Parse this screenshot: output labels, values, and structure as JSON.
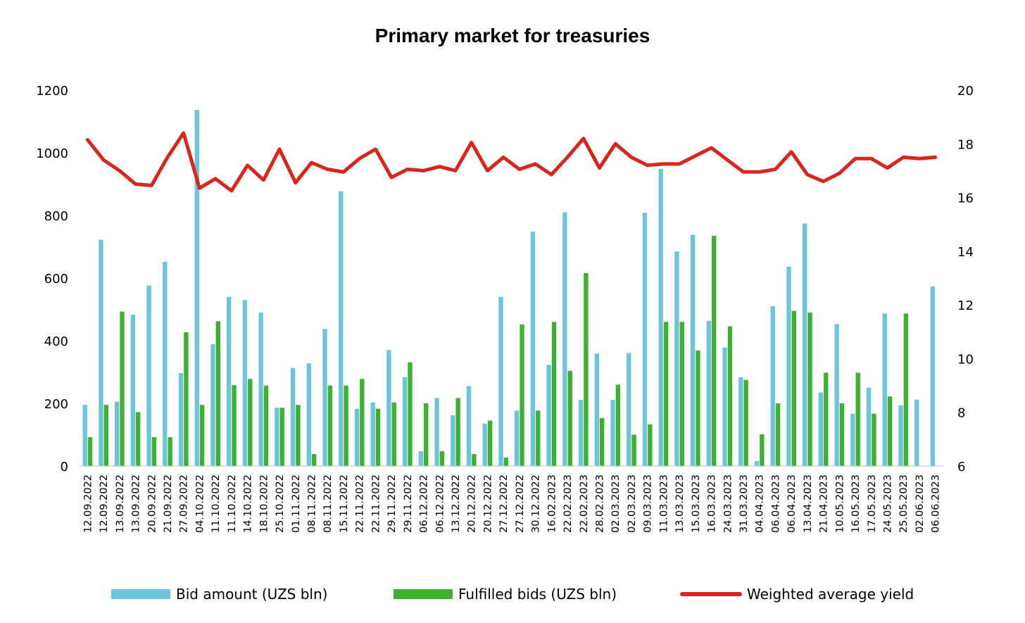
{
  "chart_data": {
    "type": "bar",
    "title": "Primary market for treasuries",
    "categories": [
      "12.09.2022",
      "12.09.2022",
      "13.09.2022",
      "13.09.2022",
      "20.09.2022",
      "21.09.2022",
      "27.09.2022",
      "04.10.2022",
      "11.10.2022",
      "11.10.2022",
      "14.10.2022",
      "18.10.2022",
      "25.10.2022",
      "01.11.2022",
      "08.11.2022",
      "08.11.2022",
      "15.11.2022",
      "22.11.2022",
      "22.11.2022",
      "29.11.2022",
      "29.11.2022",
      "06.12.2022",
      "06.12.2022",
      "13.12.2022",
      "20.12.2022",
      "20.12.2022",
      "27.12.2022",
      "27.12.2022",
      "30.12.2022",
      "16.02.2023",
      "22.02.2023",
      "22.02.2023",
      "28.02.2023",
      "02.03.2023",
      "02.03.2023",
      "09.03.2023",
      "11.03.2023",
      "13.03.2023",
      "15.03.2023",
      "16.03.2023",
      "24.03.2023",
      "31.03.2023",
      "04.04.2023",
      "06.04.2023",
      "06.04.2023",
      "13.04.2023",
      "21.04.2023",
      "10.05.2023",
      "16.05.2023",
      "17.05.2023",
      "24.05.2023",
      "25.05.2023",
      "02.06.2023",
      "06.06.2023"
    ],
    "series": [
      {
        "name": "Bid amount (UZS bln)",
        "type": "bar",
        "axis": "left",
        "color": "#6CC5D9",
        "values": [
          195,
          722,
          205,
          483,
          576,
          652,
          297,
          1137,
          389,
          540,
          530,
          490,
          186,
          313,
          328,
          438,
          877,
          183,
          203,
          370,
          284,
          47,
          217,
          162,
          255,
          135,
          540,
          177,
          748,
          323,
          810,
          211,
          359,
          211,
          361,
          808,
          949,
          685,
          738,
          464,
          378,
          283,
          16,
          510,
          636,
          774,
          235,
          453,
          167,
          250,
          487,
          194,
          212,
          573
        ]
      },
      {
        "name": "Fulfilled bids (UZS bln)",
        "type": "bar",
        "axis": "left",
        "color": "#3DB02E",
        "values": [
          92,
          195,
          493,
          172,
          92,
          92,
          427,
          195,
          462,
          258,
          278,
          257,
          186,
          195,
          38,
          257,
          257,
          278,
          183,
          203,
          331,
          200,
          47,
          217,
          38,
          145,
          27,
          452,
          177,
          460,
          304,
          616,
          153,
          260,
          100,
          133,
          460,
          460,
          369,
          735,
          446,
          275,
          101,
          200,
          495,
          490,
          298,
          200,
          298,
          167,
          222,
          487,
          0,
          0
        ]
      },
      {
        "name": "Weighted average yield",
        "type": "line",
        "axis": "right",
        "color": "#D9261C",
        "values": [
          18.15,
          17.4,
          17.0,
          16.5,
          16.45,
          17.5,
          18.4,
          16.35,
          16.7,
          16.25,
          17.2,
          16.65,
          17.8,
          16.55,
          17.3,
          17.05,
          16.95,
          17.45,
          17.8,
          16.75,
          17.05,
          17.0,
          17.15,
          17.0,
          18.05,
          17.0,
          17.5,
          17.05,
          17.25,
          16.85,
          17.5,
          18.2,
          17.1,
          18.0,
          17.5,
          17.2,
          17.25,
          17.25,
          17.55,
          17.85,
          17.4,
          16.95,
          16.95,
          17.05,
          17.7,
          16.85,
          16.6,
          16.9,
          17.45,
          17.45,
          17.1,
          17.5,
          17.45,
          17.5
        ]
      }
    ],
    "y_left": {
      "min": 0,
      "max": 1200,
      "ticks": [
        0,
        200,
        400,
        600,
        800,
        1000,
        1200
      ]
    },
    "y_right": {
      "min": 6,
      "max": 20,
      "ticks": [
        6,
        8,
        10,
        12,
        14,
        16,
        18,
        20
      ]
    },
    "grid": false,
    "legend_position": "bottom"
  }
}
